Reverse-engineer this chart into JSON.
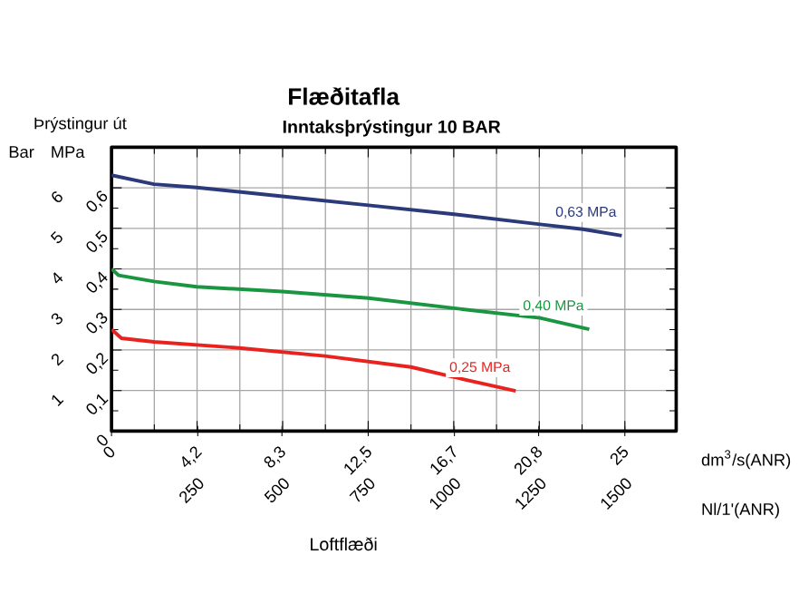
{
  "chart_data": {
    "type": "line",
    "title": "Flæðitafla",
    "subtitle": "Inntaksþrýstingur 10 BAR",
    "xlabel": "Loftflæði",
    "annotations": [
      "Þrýstingur út",
      "Bar",
      "MPa",
      "dm$^{3}$/s(ANR)",
      "Nl/1'(ANR)"
    ],
    "xlim": [
      0,
      1650
    ],
    "xticks": [
      {
        "value": 0,
        "label": null
      },
      250,
      500,
      750,
      1000,
      1250,
      1500
    ],
    "x2lim": [
      0,
      27.5
    ],
    "x2ticks": [
      0,
      {
        "value": 4.2,
        "label": "4,2"
      },
      {
        "value": 8.3,
        "label": "8,3"
      },
      {
        "value": 12.5,
        "label": "12,5"
      },
      {
        "value": 16.7,
        "label": "16,7"
      },
      {
        "value": 20.8,
        "label": "20,8"
      },
      25
    ],
    "ylim": [
      0,
      0.7
    ],
    "yticks": [
      0,
      {
        "value": 0.1,
        "label": "0,1"
      },
      {
        "value": 0.2,
        "label": "0,2"
      },
      {
        "value": 0.3,
        "label": "0,3"
      },
      {
        "value": 0.4,
        "label": "0,4"
      },
      {
        "value": 0.5,
        "label": "0,5"
      },
      {
        "value": 0.6,
        "label": "0,6"
      }
    ],
    "y2lim": [
      0,
      7
    ],
    "y2ticks": [
      1,
      2,
      3,
      4,
      5,
      6
    ],
    "grid": true,
    "legend": false,
    "marker": "none",
    "series": [
      {
        "name": "0,63 MPa",
        "color": "#2b3a7a",
        "x": [
          0,
          124,
          249,
          499,
          751,
          1001,
          1252,
          1377,
          1491
        ],
        "values": [
          0.631,
          0.609,
          0.601,
          0.579,
          0.557,
          0.535,
          0.51,
          0.498,
          0.482
        ]
      },
      {
        "name": "0,40 MPa",
        "color": "#1a9641",
        "x": [
          0,
          21,
          124,
          249,
          499,
          751,
          1001,
          1252,
          1396
        ],
        "values": [
          0.4,
          0.384,
          0.369,
          0.356,
          0.344,
          0.328,
          0.303,
          0.279,
          0.251
        ]
      },
      {
        "name": "0,25 MPa",
        "color": "#e8231f",
        "x": [
          0,
          29,
          124,
          373,
          624,
          875,
          1001,
          1181
        ],
        "values": [
          0.251,
          0.229,
          0.22,
          0.205,
          0.185,
          0.158,
          0.133,
          0.099
        ]
      }
    ]
  }
}
